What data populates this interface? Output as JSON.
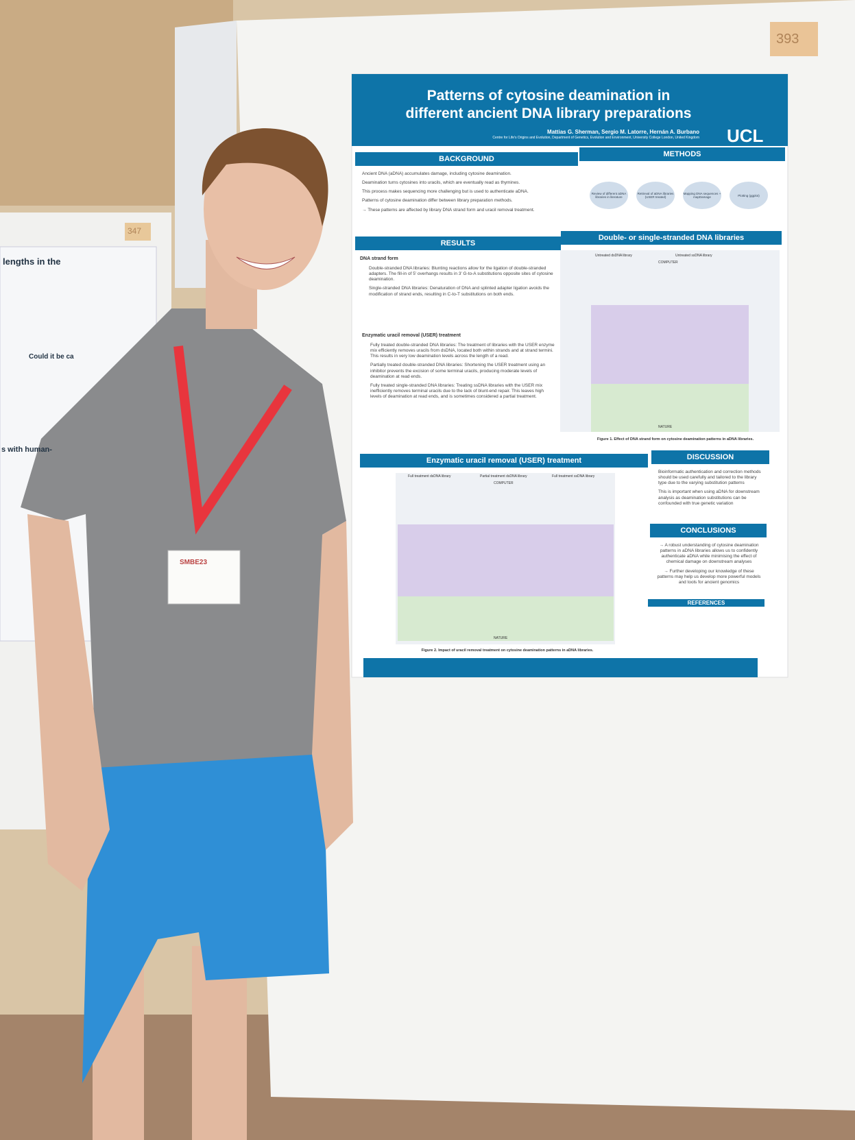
{
  "board_number": "393",
  "neighbor_board_number": "347",
  "poster": {
    "title": "Patterns of cytosine deamination in different ancient DNA library preparations",
    "authors": "Mattias G. Sherman, Sergio M. Latorre, Hernán A. Burbano",
    "affiliation": "Centre for Life's Origins and Evolution, Department of Genetics, Evolution and Environment, University College London, United Kingdom",
    "logo": "UCL",
    "background": {
      "heading": "BACKGROUND",
      "bullets": [
        "Ancient DNA (aDNA) accumulates damage, including cytosine deamination.",
        "Deamination turns cytosines into uracils, which are eventually read as thymines.",
        "This process makes sequencing more challenging but is used to authenticate aDNA.",
        "Patterns of cytosine deamination differ between library preparation methods.",
        "→ These patterns are affected by library DNA strand form and uracil removal treatment."
      ]
    },
    "methods": {
      "heading": "METHODS",
      "steps": [
        "Review of different aDNA libraries in literature",
        "Retrieval of aDNA libraries (USER treated)",
        "Mapping DNA sequences + mapDamage",
        "Plotting (ggplot)"
      ]
    },
    "results": {
      "heading": "RESULTS",
      "subheading_1": "DNA strand form",
      "paragraphs_1": [
        "Double-stranded DNA libraries: Blunting reactions allow for the ligation of double-stranded adapters. The fill-in of 5' overhangs results in 3' G-to-A substitutions opposite sites of cytosine deamination.",
        "Single-stranded DNA libraries: Denaturation of DNA and splinted adapter ligation avoids the modification of strand ends, resulting in C-to-T substitutions on both ends."
      ],
      "subheading_2": "Enzymatic uracil removal (USER) treatment",
      "paragraphs_2": [
        "Fully treated double-stranded DNA libraries: The treatment of libraries with the USER enzyme mix efficiently removes uracils from dsDNA, located both within strands and at strand termini. This results in very low deamination levels across the length of a read.",
        "Partially treated double-stranded DNA libraries: Shortening the USER treatment using an inhibitor prevents the excision of some terminal uracils, producing moderate levels of deamination at read ends.",
        "Fully treated single-stranded DNA libraries: Treating ssDNA libraries with the USER mix inefficiently removes terminal uracils due to the lack of blunt-end repair. This leaves high levels of deamination at read ends, and is sometimes considered a partial treatment."
      ]
    },
    "figure_1": {
      "heading": "Double- or single-stranded DNA libraries",
      "panels": [
        "Untreated dsDNA library",
        "Untreated ssDNA library"
      ],
      "top_label": "COMPUTER",
      "bottom_label": "NATURE",
      "caption": "Figure 1. Effect of DNA strand form on cytosine deamination patterns in aDNA libraries."
    },
    "figure_2": {
      "heading": "Enzymatic uracil removal (USER) treatment",
      "panels": [
        "Full treatment dsDNA library",
        "Partial treatment dsDNA library",
        "Full treatment ssDNA library"
      ],
      "top_label": "COMPUTER",
      "bottom_label": "NATURE",
      "caption": "Figure 2. Impact of uracil removal treatment on cytosine deamination patterns in aDNA libraries."
    },
    "discussion": {
      "heading": "DISCUSSION",
      "bullets": [
        "Bioinformatic authentication and correction methods should be used carefully and tailored to the library type due to the varying substitution patterns",
        "This is important when using aDNA for downstream analysis as deamination substitutions can be confounded with true genetic variation"
      ]
    },
    "conclusions": {
      "heading": "CONCLUSIONS",
      "bullets": [
        "→ A robust understanding of cytosine deamination patterns in aDNA libraries allows us to confidently authenticate aDNA while minimising the effect of chemical damage on downstream analyses",
        "→ Further developing our knowledge of these patterns may help us develop more powerful models and tools for ancient genomics"
      ]
    },
    "references": {
      "heading": "REFERENCES"
    }
  },
  "neighbor_poster": {
    "title_fragment": "lengths in the",
    "subheading_fragment": "Could it be ca",
    "fragment": "s with human-"
  },
  "badge": {
    "event": "SMBE23"
  }
}
